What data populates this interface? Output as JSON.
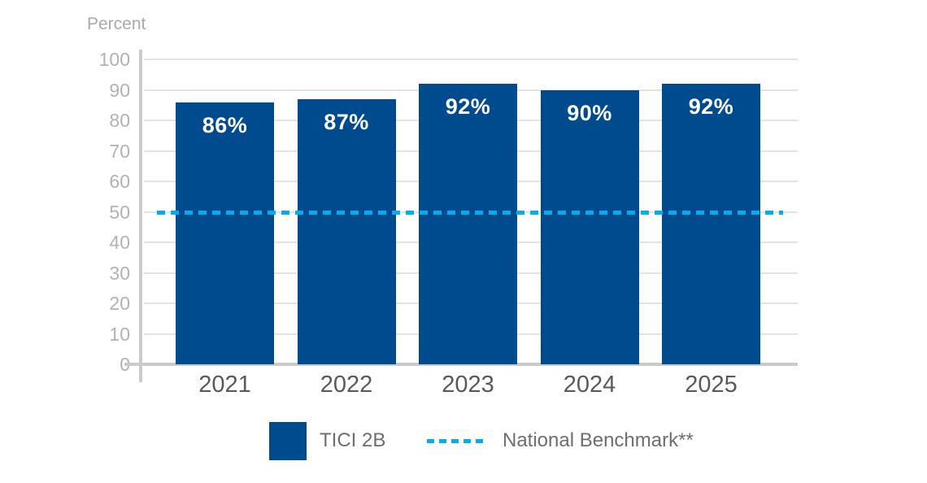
{
  "chart_data": {
    "type": "bar",
    "title": "",
    "ylabel": "Percent",
    "xlabel": "",
    "categories": [
      "2021",
      "2022",
      "2023",
      "2024",
      "2025"
    ],
    "series": [
      {
        "name": "TICI 2B",
        "values": [
          86,
          87,
          92,
          90,
          92
        ],
        "data_labels": [
          "86%",
          "87%",
          "92%",
          "90%",
          "92%"
        ],
        "color": "#004b8d"
      }
    ],
    "benchmark_line": {
      "name": "National Benchmark**",
      "value": 50,
      "style": "dashed",
      "color": "#00aeef"
    },
    "ylim": [
      0,
      100
    ],
    "yticks": [
      0,
      10,
      20,
      30,
      40,
      50,
      60,
      70,
      80,
      90,
      100
    ],
    "grid": true,
    "legend_position": "bottom"
  },
  "legend": {
    "items": [
      {
        "label": "TICI 2B",
        "swatch": "square",
        "color": "#004b8d"
      },
      {
        "label": "National Benchmark**",
        "swatch": "dashed-line",
        "color": "#00aeef"
      }
    ]
  },
  "colors": {
    "bar": "#004b8d",
    "benchmark_line": "#00aeef",
    "gridline": "#e3e3e4",
    "axis": "#c9cacb",
    "ytick_text": "#b1b2b4",
    "xtick_text": "#58595b",
    "ylabel_text": "#a9aaac",
    "legend_text": "#6d6e71",
    "bar_label_text": "#ffffff",
    "background": "#ffffff"
  }
}
